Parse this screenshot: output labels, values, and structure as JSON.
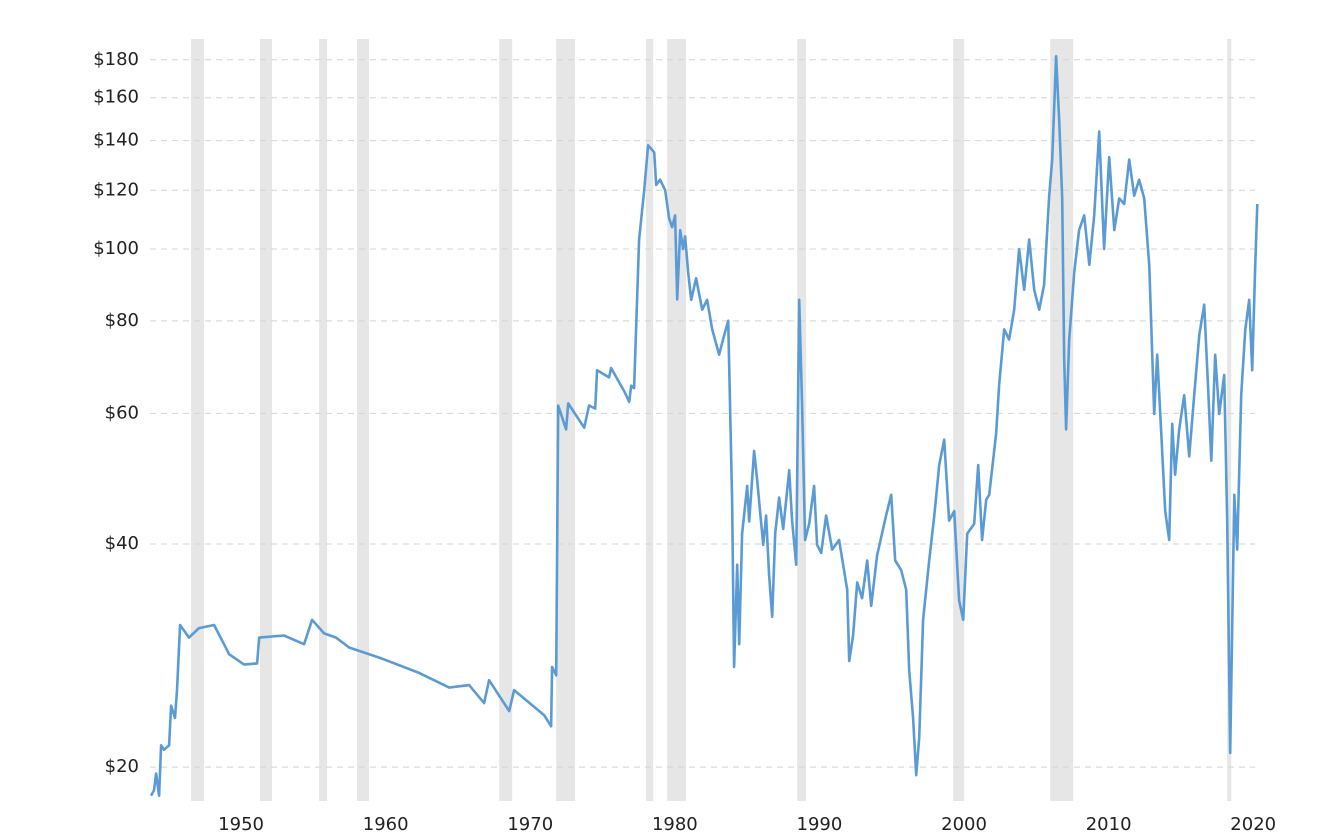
{
  "chart_data": {
    "type": "line",
    "color": "#5b9bd5",
    "band_color": "#e6e6e6",
    "log_y": true,
    "grid": true,
    "xlim": [
      1943.7,
      2020.4
    ],
    "ylim": [
      18,
      192
    ],
    "xticks": [
      1950,
      1960,
      1970,
      1980,
      1990,
      2000,
      2010,
      2020
    ],
    "yticks": [
      {
        "value": 20,
        "label": "$20"
      },
      {
        "value": 40,
        "label": "$40"
      },
      {
        "value": 60,
        "label": "$60"
      },
      {
        "value": 80,
        "label": "$80"
      },
      {
        "value": 100,
        "label": "$100"
      },
      {
        "value": 120,
        "label": "$120"
      },
      {
        "value": 140,
        "label": "$140"
      },
      {
        "value": 160,
        "label": "$160"
      },
      {
        "value": 180,
        "label": "$180"
      }
    ],
    "shaded_periods": [
      [
        1946.54,
        1947.44
      ],
      [
        1951.31,
        1952.14
      ],
      [
        1955.4,
        1955.95
      ],
      [
        1958.02,
        1958.85
      ],
      [
        1967.85,
        1968.75
      ],
      [
        1971.79,
        1973.1
      ],
      [
        1978.01,
        1978.5
      ],
      [
        1979.47,
        1980.78
      ],
      [
        1988.46,
        1989.08
      ],
      [
        1999.25,
        2000.01
      ],
      [
        2005.96,
        2007.55
      ],
      [
        2018.2,
        2018.48
      ]
    ],
    "x": [
      1943.77,
      1943.98,
      1944.12,
      1944.33,
      1944.47,
      1944.67,
      1945.02,
      1945.16,
      1945.43,
      1945.57,
      1945.78,
      1946.4,
      1947.09,
      1948.13,
      1948.82,
      1949.17,
      1950.21,
      1951.11,
      1951.25,
      1952.97,
      1954.36,
      1954.91,
      1955.74,
      1956.57,
      1957.47,
      1959.55,
      1962.31,
      1964.39,
      1965.77,
      1966.81,
      1967.15,
      1968.54,
      1968.88,
      1970.96,
      1971.44,
      1971.51,
      1971.79,
      1971.93,
      1972.48,
      1972.62,
      1973.73,
      1974.07,
      1974.49,
      1974.62,
      1975.45,
      1975.59,
      1976.49,
      1976.84,
      1976.98,
      1977.18,
      1977.53,
      1977.88,
      1978.15,
      1978.57,
      1978.71,
      1978.98,
      1979.33,
      1979.6,
      1979.81,
      1980.02,
      1980.16,
      1980.37,
      1980.57,
      1980.71,
      1980.92,
      1981.13,
      1981.47,
      1981.89,
      1982.23,
      1982.58,
      1983.06,
      1983.41,
      1983.69,
      1983.96,
      1984.1,
      1984.31,
      1984.45,
      1984.65,
      1985.0,
      1985.14,
      1985.48,
      1985.69,
      1986.11,
      1986.31,
      1986.52,
      1986.73,
      1986.94,
      1987.21,
      1987.49,
      1987.91,
      1988.11,
      1988.39,
      1988.6,
      1988.8,
      1989.01,
      1989.29,
      1989.63,
      1989.84,
      1990.12,
      1990.46,
      1990.88,
      1991.36,
      1991.92,
      1992.06,
      1992.33,
      1992.61,
      1992.95,
      1993.3,
      1993.58,
      1993.99,
      1994.61,
      1994.96,
      1995.24,
      1995.65,
      1996.0,
      1996.21,
      1996.48,
      1996.69,
      1996.9,
      1997.17,
      1997.59,
      1997.94,
      1998.28,
      1998.63,
      1998.97,
      1999.32,
      1999.66,
      1999.94,
      2000.22,
      2000.7,
      2000.98,
      2001.25,
      2001.53,
      2001.74,
      2002.22,
      2002.43,
      2002.78,
      2003.12,
      2003.47,
      2003.81,
      2004.16,
      2004.51,
      2004.85,
      2005.2,
      2005.54,
      2005.89,
      2006.1,
      2006.37,
      2006.58,
      2006.79,
      2006.93,
      2007.06,
      2007.27,
      2007.62,
      2007.96,
      2008.31,
      2008.66,
      2009.0,
      2009.35,
      2009.69,
      2010.04,
      2010.39,
      2010.73,
      2011.08,
      2011.42,
      2011.77,
      2012.11,
      2012.46,
      2012.81,
      2013.15,
      2013.36,
      2013.64,
      2013.91,
      2014.19,
      2014.4,
      2014.6,
      2014.88,
      2015.23,
      2015.57,
      2015.92,
      2016.27,
      2016.61,
      2016.89,
      2017.1,
      2017.37,
      2017.65,
      2017.99,
      2018.2,
      2018.41,
      2018.69,
      2018.89,
      2019.17,
      2019.45,
      2019.72,
      2019.93,
      2020.14,
      2020.28
    ],
    "values": [
      18.3,
      18.6,
      19.6,
      18.3,
      21.4,
      21.1,
      21.4,
      24.2,
      23.3,
      25.4,
      31.1,
      29.9,
      30.8,
      31.1,
      29.3,
      28.4,
      27.5,
      27.6,
      29.9,
      30.1,
      29.3,
      31.6,
      30.3,
      29.9,
      29.0,
      28.1,
      26.8,
      25.6,
      25.8,
      24.4,
      26.2,
      23.8,
      25.4,
      23.5,
      22.7,
      27.3,
      26.6,
      61.5,
      57.1,
      61.9,
      57.4,
      61.5,
      60.9,
      68.6,
      67.1,
      69.1,
      64.3,
      62.2,
      65.4,
      64.9,
      103,
      120,
      138,
      135,
      122,
      124,
      120,
      110,
      107,
      111,
      85.5,
      106,
      100,
      104,
      92.9,
      85.4,
      91.3,
      82.8,
      85.4,
      77.9,
      72.0,
      76.5,
      80.0,
      45.9,
      27.3,
      37.5,
      29.3,
      41.3,
      47.9,
      42.9,
      53.4,
      48.9,
      39.9,
      43.7,
      36.3,
      31.9,
      41.3,
      46.2,
      41.9,
      50.3,
      43.0,
      37.5,
      85.4,
      61.5,
      40.5,
      42.6,
      47.9,
      39.9,
      38.9,
      43.7,
      39.3,
      40.5,
      34.7,
      27.8,
      30.1,
      35.5,
      33.8,
      38.0,
      33.0,
      38.6,
      43.7,
      46.6,
      38.0,
      36.9,
      34.7,
      27.0,
      23.3,
      19.5,
      21.9,
      31.6,
      38.0,
      43.7,
      51.1,
      55.3,
      43.0,
      44.3,
      33.6,
      31.6,
      41.3,
      42.6,
      51.1,
      40.5,
      45.9,
      46.6,
      56.3,
      65.7,
      77.9,
      75.5,
      82.8,
      100,
      88.1,
      103,
      88.1,
      82.8,
      89.5,
      118,
      132,
      182,
      149,
      117,
      70.9,
      57.1,
      75.5,
      92.9,
      106,
      111,
      95.2,
      111,
      144,
      100,
      133,
      106,
      117,
      115,
      132,
      118,
      124,
      117,
      94.8,
      59.9,
      72.0,
      56.3,
      44.3,
      40.5,
      58.1,
      49.6,
      57.1,
      63.5,
      52.5,
      63.5,
      76.6,
      84.1,
      64.6,
      51.8,
      72.0,
      59.9,
      67.6,
      43.0,
      20.9,
      46.6,
      39.3,
      63.5,
      77.9,
      85.4,
      68.6,
      94.8,
      115
    ]
  }
}
